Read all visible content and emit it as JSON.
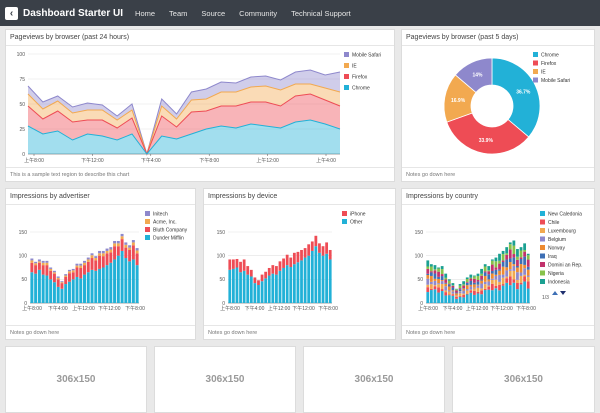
{
  "nav": {
    "brand": "Dashboard Starter UI",
    "links": [
      "Home",
      "Team",
      "Source",
      "Community",
      "Technical Support"
    ]
  },
  "panels": {
    "browser24": {
      "title": "Pageviews by browser (past 24 hours)",
      "note": "This is a sample text region to describe this chart"
    },
    "browser5": {
      "title": "Pageviews by browser (past 5 days)",
      "note": "Notes go down here"
    },
    "advertiser": {
      "title": "Impressions by advertiser",
      "note": "Notes go down here"
    },
    "device": {
      "title": "Impressions by device",
      "note": "Notes go down here"
    },
    "country": {
      "title": "Impressions by country",
      "note": "Notes go down here",
      "pager": "1/3"
    }
  },
  "placeholders": [
    "306x150",
    "306x150",
    "306x150",
    "306x150"
  ],
  "colors": {
    "purple": "#8e88cc",
    "orange": "#f2a950",
    "red": "#ee4c55",
    "cyan": "#22b1d7"
  },
  "chart_data": [
    {
      "type": "area",
      "title": "Pageviews by browser (past 24 hours)",
      "ylim": [
        0,
        100
      ],
      "yticks": [
        0,
        25,
        50,
        75,
        100
      ],
      "xticklabels": [
        "上午8:00",
        "下午12:00",
        "下午4:00",
        "下午8:00",
        "上午12:00",
        "上午4:00"
      ],
      "series": [
        {
          "name": "Chrome",
          "color": "#22b1d7",
          "values": [
            28,
            20,
            23,
            14,
            20,
            18,
            14,
            20,
            0,
            18,
            15,
            20,
            25,
            28,
            26,
            30,
            28,
            26,
            32,
            34,
            30,
            25
          ]
        },
        {
          "name": "Firefox",
          "color": "#ee4c55",
          "values": [
            20,
            15,
            20,
            18,
            14,
            16,
            12,
            16,
            0,
            20,
            12,
            22,
            18,
            20,
            22,
            22,
            24,
            22,
            26,
            26,
            24,
            23
          ]
        },
        {
          "name": "IE",
          "color": "#f2a950",
          "values": [
            12,
            10,
            10,
            9,
            10,
            10,
            8,
            8,
            0,
            10,
            8,
            12,
            12,
            14,
            14,
            15,
            16,
            16,
            12,
            10,
            12,
            14
          ]
        },
        {
          "name": "Mobile Safari",
          "color": "#8e88cc",
          "values": [
            8,
            7,
            5,
            6,
            7,
            5,
            4,
            6,
            0,
            7,
            5,
            8,
            10,
            10,
            9,
            10,
            10,
            10,
            12,
            14,
            13,
            20
          ]
        }
      ]
    },
    {
      "type": "pie",
      "title": "Pageviews by browser (past 5 days)",
      "slices": [
        {
          "name": "Chrome",
          "value": 36.7,
          "label": "36.7%",
          "color": "#22b1d7"
        },
        {
          "name": "Firefox",
          "value": 33.9,
          "label": "33.9%",
          "color": "#ee4c55"
        },
        {
          "name": "IE",
          "value": 16.9,
          "label": "16.9%",
          "color": "#f2a950"
        },
        {
          "name": "Mobile Safari",
          "value": 14,
          "label": "14%",
          "color": "#8e88cc"
        }
      ]
    },
    {
      "type": "bar",
      "title": "Impressions by advertiser",
      "ylim": [
        0,
        150
      ],
      "yticks": [
        0,
        50,
        100,
        150
      ],
      "xticklabels": [
        "上午8:00",
        "下午4:00",
        "上午12:00",
        "下午12:00",
        "下午8:00"
      ],
      "series": [
        {
          "name": "Dunder Mifflin",
          "color": "#22b1d7",
          "values": [
            65,
            62,
            70,
            60,
            58,
            50,
            44,
            34,
            30,
            40,
            45,
            50,
            55,
            52,
            60,
            65,
            70,
            68,
            72,
            75,
            80,
            85,
            92,
            100,
            110,
            95,
            88,
            92,
            80
          ]
        },
        {
          "name": "Bluth Company",
          "color": "#ee4c55",
          "values": [
            20,
            18,
            15,
            20,
            22,
            18,
            18,
            16,
            12,
            15,
            18,
            15,
            20,
            22,
            20,
            22,
            25,
            22,
            28,
            24,
            25,
            22,
            28,
            20,
            25,
            22,
            24,
            30,
            25
          ]
        },
        {
          "name": "Acme, Inc.",
          "color": "#f2a950",
          "values": [
            5,
            4,
            3,
            5,
            5,
            4,
            3,
            3,
            2,
            3,
            4,
            4,
            4,
            5,
            5,
            5,
            6,
            5,
            5,
            6,
            5,
            6,
            6,
            6,
            6,
            6,
            5,
            6,
            6
          ]
        },
        {
          "name": "Initech",
          "color": "#8e88cc",
          "values": [
            4,
            3,
            4,
            4,
            4,
            3,
            3,
            3,
            2,
            3,
            3,
            3,
            4,
            4,
            4,
            4,
            4,
            4,
            5,
            5,
            5,
            5,
            5,
            5,
            5,
            5,
            5,
            5,
            5
          ]
        }
      ]
    },
    {
      "type": "bar",
      "title": "Impressions by device",
      "ylim": [
        0,
        150
      ],
      "yticks": [
        0,
        50,
        100,
        150
      ],
      "xticklabels": [
        "上午8:00",
        "下午4:00",
        "上午12:00",
        "下午12:00",
        "下午8:00"
      ],
      "series": [
        {
          "name": "Other",
          "color": "#22b1d7",
          "values": [
            70,
            72,
            75,
            65,
            68,
            60,
            56,
            42,
            38,
            46,
            52,
            58,
            62,
            60,
            68,
            74,
            80,
            76,
            82,
            86,
            90,
            96,
            100,
            110,
            120,
            106,
            100,
            104,
            92
          ]
        },
        {
          "name": "iPhone",
          "color": "#ee4c55",
          "values": [
            22,
            20,
            18,
            22,
            24,
            18,
            14,
            12,
            10,
            14,
            14,
            16,
            18,
            18,
            20,
            20,
            22,
            20,
            24,
            22,
            22,
            20,
            24,
            20,
            22,
            20,
            20,
            24,
            20
          ]
        }
      ]
    },
    {
      "type": "bar",
      "title": "Impressions by country",
      "ylim": [
        0,
        150
      ],
      "yticks": [
        0,
        50,
        100,
        150
      ],
      "xticklabels": [
        "上午8:00",
        "下午4:00",
        "上午12:00",
        "下午12:00",
        "下午8:00"
      ],
      "totals": [
        90,
        82,
        80,
        75,
        78,
        62,
        50,
        42,
        30,
        40,
        46,
        54,
        60,
        58,
        62,
        72,
        82,
        78,
        92,
        96,
        104,
        110,
        118,
        128,
        132,
        114,
        118,
        126,
        104
      ],
      "series": [
        {
          "name": "New Caledonia",
          "color": "#22b1d7"
        },
        {
          "name": "Chile",
          "color": "#ee4c55"
        },
        {
          "name": "Luxembourg",
          "color": "#f2a950"
        },
        {
          "name": "Belgium",
          "color": "#8e88cc"
        },
        {
          "name": "Norway",
          "color": "#ee8a30"
        },
        {
          "name": "Iraq",
          "color": "#3d6fb5"
        },
        {
          "name": "Domini an Rep.",
          "color": "#c2326c"
        },
        {
          "name": "Nigeria",
          "color": "#87c24a"
        },
        {
          "name": "Indonesia",
          "color": "#1aa091"
        }
      ]
    }
  ]
}
